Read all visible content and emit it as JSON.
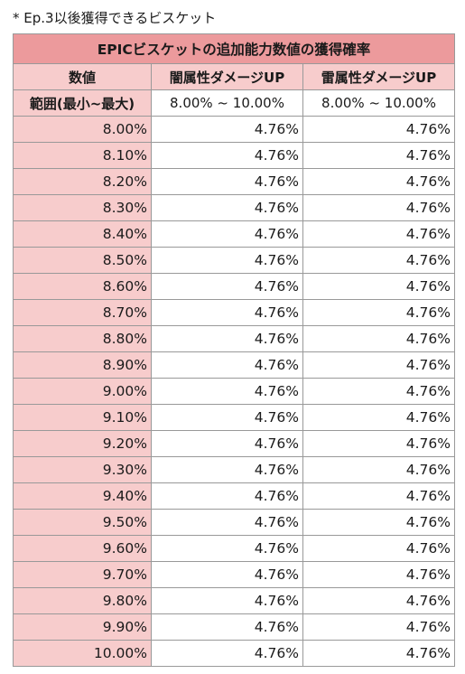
{
  "note": "* Ep.3以後獲得できるビスケット",
  "title": "EPICビスケットの追加能力数値の獲得確率",
  "headers": [
    "数値",
    "闇属性ダメージUP",
    "雷属性ダメージUP"
  ],
  "range_row": {
    "label": "範囲(最小~最大)",
    "col2": "8.00% ~ 10.00%",
    "col3": "8.00% ~ 10.00%"
  },
  "rows": [
    {
      "value": "8.00%",
      "dark": "4.76%",
      "thunder": "4.76%"
    },
    {
      "value": "8.10%",
      "dark": "4.76%",
      "thunder": "4.76%"
    },
    {
      "value": "8.20%",
      "dark": "4.76%",
      "thunder": "4.76%"
    },
    {
      "value": "8.30%",
      "dark": "4.76%",
      "thunder": "4.76%"
    },
    {
      "value": "8.40%",
      "dark": "4.76%",
      "thunder": "4.76%"
    },
    {
      "value": "8.50%",
      "dark": "4.76%",
      "thunder": "4.76%"
    },
    {
      "value": "8.60%",
      "dark": "4.76%",
      "thunder": "4.76%"
    },
    {
      "value": "8.70%",
      "dark": "4.76%",
      "thunder": "4.76%"
    },
    {
      "value": "8.80%",
      "dark": "4.76%",
      "thunder": "4.76%"
    },
    {
      "value": "8.90%",
      "dark": "4.76%",
      "thunder": "4.76%"
    },
    {
      "value": "9.00%",
      "dark": "4.76%",
      "thunder": "4.76%"
    },
    {
      "value": "9.10%",
      "dark": "4.76%",
      "thunder": "4.76%"
    },
    {
      "value": "9.20%",
      "dark": "4.76%",
      "thunder": "4.76%"
    },
    {
      "value": "9.30%",
      "dark": "4.76%",
      "thunder": "4.76%"
    },
    {
      "value": "9.40%",
      "dark": "4.76%",
      "thunder": "4.76%"
    },
    {
      "value": "9.50%",
      "dark": "4.76%",
      "thunder": "4.76%"
    },
    {
      "value": "9.60%",
      "dark": "4.76%",
      "thunder": "4.76%"
    },
    {
      "value": "9.70%",
      "dark": "4.76%",
      "thunder": "4.76%"
    },
    {
      "value": "9.80%",
      "dark": "4.76%",
      "thunder": "4.76%"
    },
    {
      "value": "9.90%",
      "dark": "4.76%",
      "thunder": "4.76%"
    },
    {
      "value": "10.00%",
      "dark": "4.76%",
      "thunder": "4.76%"
    }
  ],
  "colors": {
    "title_bg": "#ec9a9c",
    "header_bg": "#f7cccc",
    "border": "#999999"
  }
}
